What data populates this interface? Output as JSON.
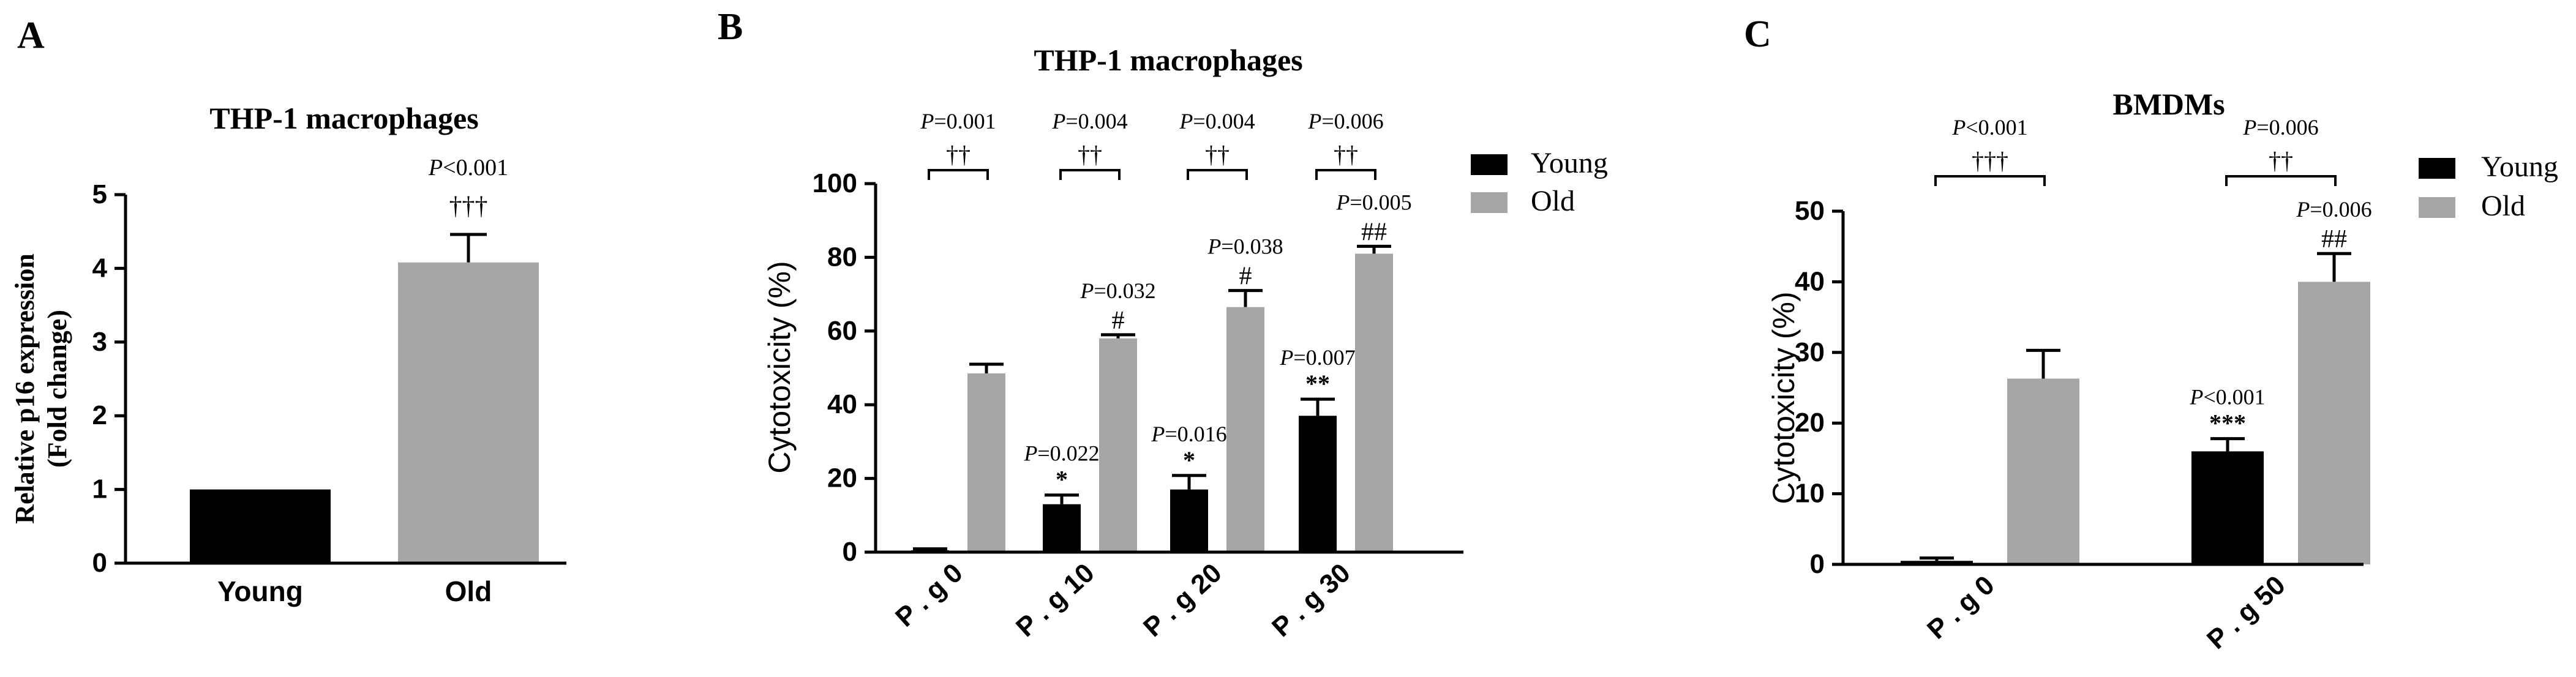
{
  "colors": {
    "young": "#000000",
    "old": "#a6a6a7",
    "axis": "#000000",
    "text": "#000000"
  },
  "chart_data": [
    {
      "type": "bar",
      "panel_label": "A",
      "title": "THP-1 macrophages",
      "ylabel_line1": "Relative p16 expression",
      "ylabel_line2": "(Fold change)",
      "ylim": [
        0,
        5
      ],
      "yticks": [
        "0",
        "1",
        "2",
        "3",
        "4",
        "5"
      ],
      "categories": [
        "Young",
        "Old"
      ],
      "values": [
        1.0,
        4.08
      ],
      "errors": [
        0,
        0.38
      ],
      "annotations": [
        {
          "bar": 1,
          "p": "P",
          "text": "<0.001",
          "sig": "†††"
        }
      ]
    },
    {
      "type": "bar",
      "panel_label": "B",
      "title": "THP-1 macrophages",
      "ylabel": "Cytotoxicity (%)",
      "ylim": [
        0,
        100
      ],
      "yticks": [
        "0",
        "20",
        "40",
        "60",
        "80",
        "100"
      ],
      "categories": [
        "P . g 0",
        "P . g 10",
        "P . g 20",
        "P . g 30"
      ],
      "legend": [
        "Young",
        "Old"
      ],
      "series": [
        {
          "name": "Young",
          "values": [
            0.5,
            13,
            17,
            37
          ],
          "errors": [
            0.4,
            2.5,
            3.8,
            4.5
          ]
        },
        {
          "name": "Old",
          "values": [
            48.5,
            58,
            66.5,
            81
          ],
          "errors": [
            2.5,
            1.0,
            4.5,
            2.0
          ]
        }
      ],
      "young_annotations": [
        null,
        {
          "p": "P",
          "text": "=0.022",
          "sig": "*"
        },
        {
          "p": "P",
          "text": "=0.016",
          "sig": "*"
        },
        {
          "p": "P",
          "text": "=0.007",
          "sig": "**"
        }
      ],
      "old_annotations": [
        null,
        {
          "p": "P",
          "text": "=0.032",
          "sig": "#"
        },
        {
          "p": "P",
          "text": "=0.038",
          "sig": "#"
        },
        {
          "p": "P",
          "text": "=0.005",
          "sig": "##"
        }
      ],
      "brackets": [
        {
          "p": "P",
          "text": "=0.001",
          "sig": "††"
        },
        {
          "p": "P",
          "text": "=0.004",
          "sig": "††"
        },
        {
          "p": "P",
          "text": "=0.004",
          "sig": "††"
        },
        {
          "p": "P",
          "text": "=0.006",
          "sig": "††"
        }
      ]
    },
    {
      "type": "bar",
      "panel_label": "C",
      "title": "BMDMs",
      "ylabel": "Cytotoxicity (%)",
      "ylim": [
        0,
        50
      ],
      "yticks": [
        "0",
        "10",
        "20",
        "30",
        "40",
        "50"
      ],
      "categories": [
        "P . g 0",
        "P . g 50"
      ],
      "legend": [
        "Young",
        "Old"
      ],
      "series": [
        {
          "name": "Young",
          "values": [
            0.5,
            16
          ],
          "errors": [
            0.4,
            1.8
          ]
        },
        {
          "name": "Old",
          "values": [
            26.3,
            40
          ],
          "errors": [
            4.0,
            4.0
          ]
        }
      ],
      "young_annotations": [
        null,
        {
          "p": "P",
          "text": "<0.001",
          "sig": "***"
        }
      ],
      "old_annotations": [
        null,
        {
          "p": "P",
          "text": "=0.006",
          "sig": "##"
        }
      ],
      "brackets": [
        {
          "p": "P",
          "text": "<0.001",
          "sig": "†††"
        },
        {
          "p": "P",
          "text": "=0.006",
          "sig": "††"
        }
      ]
    }
  ]
}
